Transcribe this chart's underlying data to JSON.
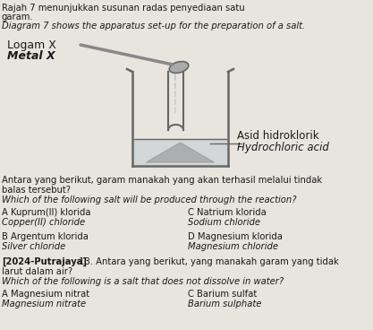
{
  "bg_color": "#e8e4de",
  "text_color": "#1a1a1a",
  "beaker_color": "#666666",
  "header_line1": "menunjukkan susunan radas penyediaan satu",
  "header_prefix_cut": "Rajah 7",
  "header_line2": "garam.",
  "header_line3": "Diagram 7 shows the apparatus set-up for the preparation of a salt.",
  "label_malay": "Logam X",
  "label_english": "Metal X",
  "label_acid_malay": "Asid hidroklorik",
  "label_acid_english": "Hydrochloric acid",
  "q1_malay_1": "Antara yang berikut, garam manakah yang akan terhasil melalui tindak",
  "q1_malay_2": "balas tersebut?",
  "q1_english": "Which of the following salt will be produced through the reaction?",
  "optA_malay": "A Kuprum(II) klorida",
  "optA_english": "Copper(II) chloride",
  "optC_malay": "C Natrium klorida",
  "optC_english": "Sodium chloride",
  "optB_malay": "B Argentum klorida",
  "optB_english": "Silver chloride",
  "optD_malay": "D Magnesium klorida",
  "optD_english": "Magnesium chloride",
  "q2_bold": "[2024-Putrajaya]",
  "q2_malay_rest": " 13. Antara yang berikut, yang manakah garam yang tidak",
  "q2_malay_2": "larut dalam air?",
  "q2_english": "Which of the following is a salt that does not dissolve in water?",
  "q2_optA_malay": "A Magnesium nitrat",
  "q2_optA_english": "Magnesium nitrate",
  "q2_optC_malay": "C Barium sulfat",
  "q2_optC_english": "Barium sulphate"
}
